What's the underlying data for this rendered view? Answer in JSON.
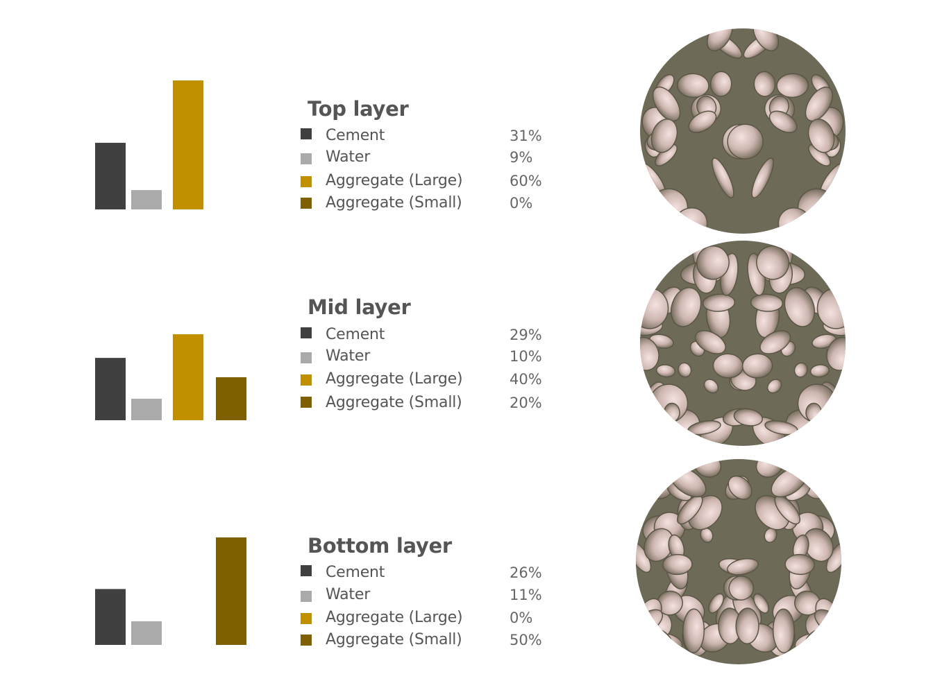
{
  "colors": {
    "cement": "#404040",
    "water": "#aaaaaa",
    "aggregate_large": "#c09000",
    "aggregate_small": "#7f6000",
    "text": "#555555"
  },
  "chart_data": [
    {
      "type": "bar",
      "title": "Top layer",
      "categories": [
        "Cement",
        "Water",
        "Aggregate (Large)",
        "Aggregate (Small)"
      ],
      "values": [
        31,
        9,
        60,
        0
      ],
      "labels": [
        "31%",
        "9%",
        "60%",
        "0%"
      ],
      "unit": "%",
      "ylim": [
        0,
        60
      ]
    },
    {
      "type": "bar",
      "title": "Mid layer",
      "categories": [
        "Cement",
        "Water",
        "Aggregate (Large)",
        "Aggregate (Small)"
      ],
      "values": [
        29,
        10,
        40,
        20
      ],
      "labels": [
        "29%",
        "10%",
        "40%",
        "20%"
      ],
      "unit": "%",
      "ylim": [
        0,
        60
      ]
    },
    {
      "type": "bar",
      "title": "Bottom layer",
      "categories": [
        "Cement",
        "Water",
        "Aggregate (Large)",
        "Aggregate (Small)"
      ],
      "values": [
        26,
        11,
        0,
        50
      ],
      "labels": [
        "26%",
        "11%",
        "0%",
        "50%"
      ],
      "unit": "%",
      "ylim": [
        0,
        60
      ]
    }
  ],
  "textures": [
    "top-layer-microstructure",
    "mid-layer-microstructure",
    "bottom-layer-microstructure"
  ]
}
